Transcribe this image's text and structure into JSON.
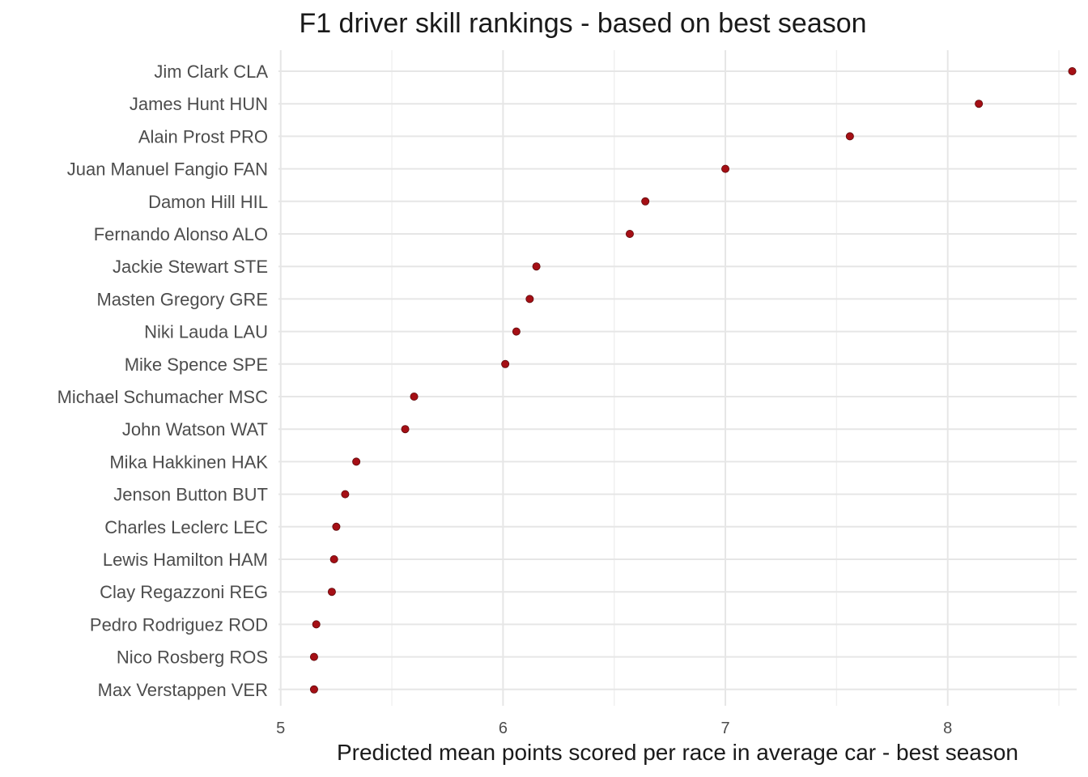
{
  "chart_data": {
    "type": "scatter",
    "title": "F1 driver skill rankings - based on best season",
    "xlabel": "Predicted mean points scored per race in average car - best season",
    "ylabel": "",
    "xlim": [
      4.99,
      8.58
    ],
    "x_ticks": [
      5,
      6,
      7,
      8
    ],
    "x_tick_labels": [
      "5",
      "6",
      "7",
      "8"
    ],
    "grid": true,
    "legend": "none",
    "point_color": "#a50f15",
    "categories": [
      "Jim Clark CLA",
      "James Hunt HUN",
      "Alain Prost PRO",
      "Juan Manuel Fangio FAN",
      "Damon Hill HIL",
      "Fernando Alonso ALO",
      "Jackie Stewart STE",
      "Masten Gregory GRE",
      "Niki Lauda LAU",
      "Mike Spence SPE",
      "Michael Schumacher MSC",
      "John Watson WAT",
      "Mika Hakkinen HAK",
      "Jenson Button BUT",
      "Charles Leclerc LEC",
      "Lewis Hamilton HAM",
      "Clay Regazzoni REG",
      "Pedro Rodriguez ROD",
      "Nico Rosberg ROS",
      "Max Verstappen VER"
    ],
    "values": [
      8.56,
      8.14,
      7.56,
      7.0,
      6.64,
      6.57,
      6.15,
      6.12,
      6.06,
      6.01,
      5.6,
      5.56,
      5.34,
      5.29,
      5.25,
      5.24,
      5.23,
      5.16,
      5.15,
      5.15
    ]
  }
}
